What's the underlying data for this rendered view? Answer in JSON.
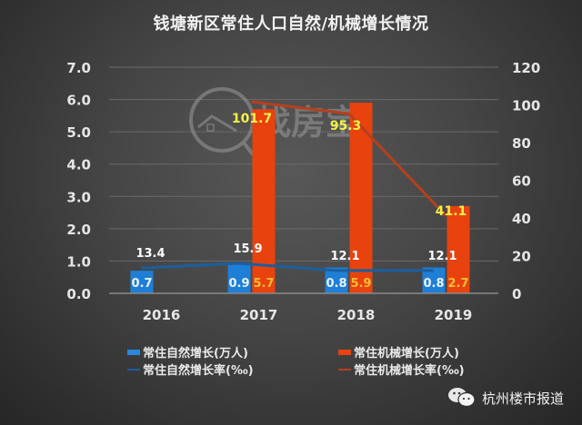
{
  "header": {
    "title": "钱塘新区常住人口自然/机械增长情况"
  },
  "watermark": {
    "text": "找房宝",
    "icon": "house-magnifier-icon"
  },
  "legend": {
    "items": [
      {
        "label": "常住自然增长(万人)",
        "kind": "bar",
        "color": "#1f7fd6"
      },
      {
        "label": "常住机械增长(万人)",
        "kind": "bar",
        "color": "#e8420e"
      },
      {
        "label": "常住自然增长率(‰)",
        "kind": "line",
        "color": "#1a5f9e"
      },
      {
        "label": "常住机械增长率(‰)",
        "kind": "line",
        "color": "#b5401d"
      }
    ]
  },
  "brand": {
    "icon": "wechat-icon",
    "label": "杭州楼市报道"
  },
  "chart_data": {
    "type": "bar",
    "title": "钱塘新区常住人口自然/机械增长情况",
    "xlabel": "",
    "ylabel": "",
    "categories": [
      "2016",
      "2017",
      "2018",
      "2019"
    ],
    "left_axis": {
      "ticks": [
        "0.0",
        "1.0",
        "2.0",
        "3.0",
        "4.0",
        "5.0",
        "6.0",
        "7.0"
      ],
      "ylim": [
        0,
        7
      ]
    },
    "right_axis": {
      "ticks": [
        "0",
        "20",
        "40",
        "60",
        "80",
        "100",
        "120"
      ],
      "ylim": [
        0,
        120
      ]
    },
    "grid": true,
    "legend_position": "bottom",
    "series": [
      {
        "name": "常住自然增长(万人)",
        "type": "bar",
        "axis": "left",
        "color": "#1f7fd6",
        "values": [
          0.7,
          0.9,
          0.8,
          0.8
        ],
        "labels": [
          "0.7",
          "0.9",
          "0.8",
          "0.8"
        ]
      },
      {
        "name": "常住机械增长(万人)",
        "type": "bar",
        "axis": "left",
        "color": "#e8420e",
        "values": [
          null,
          5.7,
          5.9,
          2.7
        ],
        "labels": [
          "",
          "5.7",
          "5.9",
          "2.7"
        ]
      },
      {
        "name": "常住自然增长率(‰)",
        "type": "line",
        "axis": "right",
        "color": "#1a5f9e",
        "values": [
          13.4,
          15.9,
          12.1,
          12.1
        ],
        "labels": [
          "13.4",
          "15.9",
          "12.1",
          "12.1"
        ]
      },
      {
        "name": "常住机械增长率(‰)",
        "type": "line",
        "axis": "right",
        "color": "#b5401d",
        "values": [
          null,
          101.7,
          95.3,
          41.1
        ],
        "labels": [
          "",
          "101.7",
          "95.3",
          "41.1"
        ]
      }
    ]
  }
}
